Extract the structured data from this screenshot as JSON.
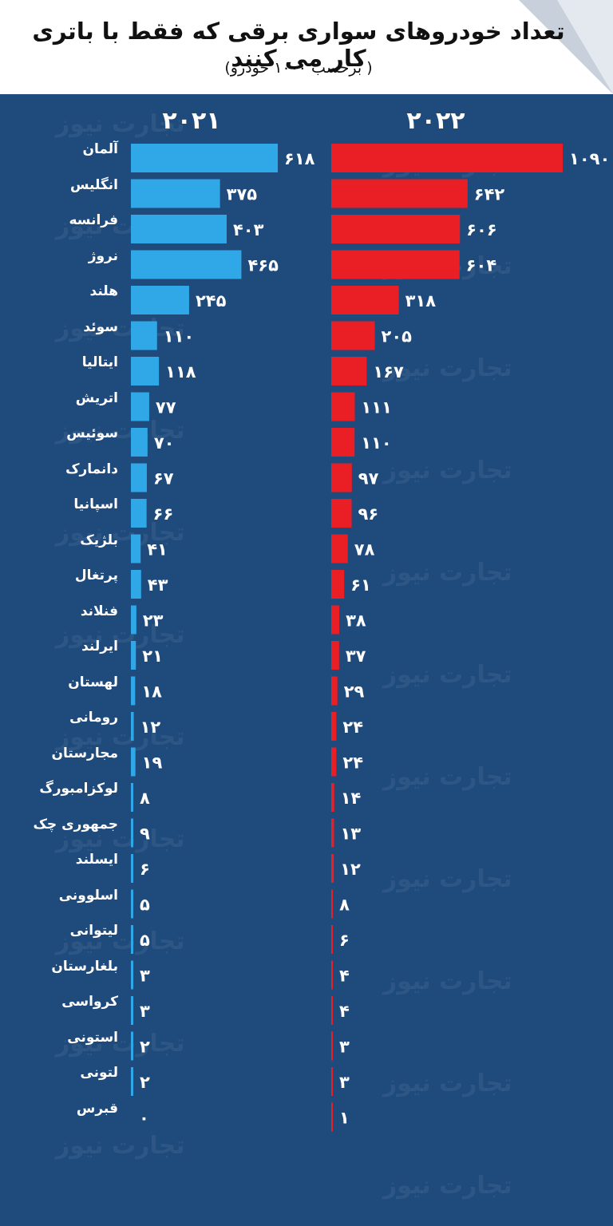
{
  "header": {
    "title": "تعداد خودروهای سواری برقی که فقط با باتری کار می کنند",
    "subtitle": "( برحسب ۱۰۰۰ خودرو)"
  },
  "watermark": "تجارت نیوز",
  "chart_data": {
    "type": "bar",
    "orientation": "horizontal",
    "categories": [
      "آلمان",
      "انگلیس",
      "فرانسه",
      "نروژ",
      "هلند",
      "سوئد",
      "ایتالیا",
      "اتریش",
      "سوئیس",
      "دانمارک",
      "اسپانیا",
      "بلژیک",
      "پرتغال",
      "فنلاند",
      "ایرلند",
      "لهستان",
      "رومانی",
      "مجارستان",
      "لوکزامبورگ",
      "جمهوری چک",
      "ایسلند",
      "اسلوونی",
      "لیتوانی",
      "بلغارستان",
      "کرواسی",
      "استونی",
      "لتونی",
      "قبرس"
    ],
    "series": [
      {
        "name": "۲۰۲۱",
        "color": "#30a7e6",
        "values": [
          618,
          375,
          403,
          465,
          245,
          110,
          118,
          77,
          70,
          67,
          66,
          41,
          43,
          23,
          21,
          18,
          12,
          19,
          8,
          9,
          6,
          5,
          5,
          3,
          3,
          2,
          2,
          0
        ],
        "labels": [
          "۶۱۸",
          "۳۷۵",
          "۴۰۳",
          "۴۶۵",
          "۲۴۵",
          "۱۱۰",
          "۱۱۸",
          "۷۷",
          "۷۰",
          "۶۷",
          "۶۶",
          "۴۱",
          "۴۳",
          "۲۳",
          "۲۱",
          "۱۸",
          "۱۲",
          "۱۹",
          "۸",
          "۹",
          "۶",
          "۵",
          "۵",
          "۳",
          "۳",
          "۲",
          "۲",
          "۰"
        ]
      },
      {
        "name": "۲۰۲۲",
        "color": "#ea1f26",
        "values": [
          1090,
          642,
          606,
          604,
          318,
          205,
          167,
          111,
          110,
          97,
          96,
          78,
          61,
          38,
          37,
          29,
          24,
          24,
          14,
          13,
          12,
          8,
          6,
          4,
          4,
          3,
          3,
          1
        ],
        "labels": [
          "۱۰۹۰",
          "۶۴۲",
          "۶۰۶",
          "۶۰۴",
          "۳۱۸",
          "۲۰۵",
          "۱۶۷",
          "۱۱۱",
          "۱۱۰",
          "۹۷",
          "۹۶",
          "۷۸",
          "۶۱",
          "۳۸",
          "۳۷",
          "۲۹",
          "۲۴",
          "۲۴",
          "۱۴",
          "۱۳",
          "۱۲",
          "۸",
          "۶",
          "۴",
          "۴",
          "۳",
          "۳",
          "۱"
        ]
      }
    ]
  }
}
